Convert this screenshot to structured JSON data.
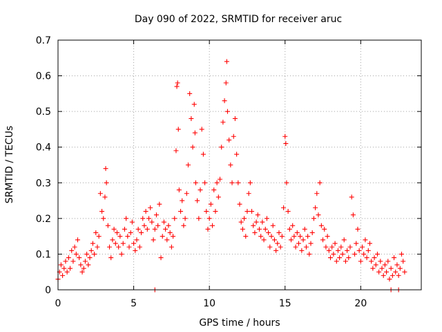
{
  "chart_data": {
    "type": "scatter",
    "title": "Day 090 of 2022, SRMTID for receiver aruc",
    "xlabel": "GPS time / hours",
    "ylabel": "SRMTID / TECUs",
    "xlim": [
      0,
      24
    ],
    "ylim": [
      0,
      0.7
    ],
    "x_ticks": [
      0,
      5,
      10,
      15,
      20
    ],
    "x_tick_labels": [
      "0",
      "5",
      "10",
      "15",
      "20"
    ],
    "y_ticks": [
      0,
      0.1,
      0.2,
      0.3,
      0.4,
      0.5,
      0.6,
      0.7
    ],
    "y_tick_labels": [
      "0",
      "0.1",
      "0.2",
      "0.3",
      "0.4",
      "0.5",
      "0.6",
      "0.7"
    ],
    "grid": true,
    "marker": "+",
    "color": "#ff0000",
    "series": [
      {
        "name": "SRMTID",
        "points": [
          [
            0.0,
            0.03
          ],
          [
            0.1,
            0.05
          ],
          [
            0.2,
            0.07
          ],
          [
            0.3,
            0.04
          ],
          [
            0.4,
            0.06
          ],
          [
            0.5,
            0.08
          ],
          [
            0.6,
            0.05
          ],
          [
            0.7,
            0.09
          ],
          [
            0.8,
            0.06
          ],
          [
            0.9,
            0.11
          ],
          [
            1.0,
            0.08
          ],
          [
            1.1,
            0.12
          ],
          [
            1.2,
            0.1
          ],
          [
            1.3,
            0.14
          ],
          [
            1.4,
            0.09
          ],
          [
            1.5,
            0.07
          ],
          [
            1.6,
            0.05
          ],
          [
            1.7,
            0.06
          ],
          [
            1.8,
            0.08
          ],
          [
            1.9,
            0.1
          ],
          [
            2.0,
            0.07
          ],
          [
            2.1,
            0.09
          ],
          [
            2.2,
            0.11
          ],
          [
            2.3,
            0.13
          ],
          [
            2.4,
            0.1
          ],
          [
            2.5,
            0.16
          ],
          [
            2.6,
            0.12
          ],
          [
            2.7,
            0.15
          ],
          [
            2.8,
            0.27
          ],
          [
            2.9,
            0.22
          ],
          [
            3.0,
            0.2
          ],
          [
            3.1,
            0.26
          ],
          [
            3.15,
            0.34
          ],
          [
            3.2,
            0.3
          ],
          [
            3.3,
            0.18
          ],
          [
            3.4,
            0.12
          ],
          [
            3.5,
            0.09
          ],
          [
            3.6,
            0.14
          ],
          [
            3.7,
            0.17
          ],
          [
            3.8,
            0.13
          ],
          [
            3.9,
            0.16
          ],
          [
            4.0,
            0.12
          ],
          [
            4.1,
            0.15
          ],
          [
            4.2,
            0.1
          ],
          [
            4.3,
            0.13
          ],
          [
            4.4,
            0.17
          ],
          [
            4.5,
            0.2
          ],
          [
            4.6,
            0.15
          ],
          [
            4.7,
            0.12
          ],
          [
            4.8,
            0.16
          ],
          [
            4.9,
            0.19
          ],
          [
            5.0,
            0.13
          ],
          [
            5.1,
            0.11
          ],
          [
            5.2,
            0.14
          ],
          [
            5.3,
            0.17
          ],
          [
            5.4,
            0.12
          ],
          [
            5.5,
            0.16
          ],
          [
            5.6,
            0.2
          ],
          [
            5.7,
            0.18
          ],
          [
            5.8,
            0.22
          ],
          [
            5.9,
            0.17
          ],
          [
            6.0,
            0.2
          ],
          [
            6.1,
            0.23
          ],
          [
            6.2,
            0.19
          ],
          [
            6.3,
            0.14
          ],
          [
            6.4,
            0.17
          ],
          [
            6.5,
            0.21
          ],
          [
            6.6,
            0.18
          ],
          [
            6.7,
            0.24
          ],
          [
            6.8,
            0.09
          ],
          [
            6.9,
            0.15
          ],
          [
            7.0,
            0.19
          ],
          [
            7.1,
            0.17
          ],
          [
            7.2,
            0.14
          ],
          [
            7.3,
            0.18
          ],
          [
            7.4,
            0.16
          ],
          [
            7.5,
            0.12
          ],
          [
            7.6,
            0.15
          ],
          [
            7.7,
            0.2
          ],
          [
            7.8,
            0.39
          ],
          [
            7.85,
            0.57
          ],
          [
            7.9,
            0.58
          ],
          [
            7.95,
            0.45
          ],
          [
            8.0,
            0.28
          ],
          [
            8.1,
            0.22
          ],
          [
            8.2,
            0.25
          ],
          [
            8.3,
            0.18
          ],
          [
            8.4,
            0.2
          ],
          [
            8.5,
            0.27
          ],
          [
            8.6,
            0.35
          ],
          [
            8.7,
            0.55
          ],
          [
            8.8,
            0.48
          ],
          [
            8.9,
            0.4
          ],
          [
            9.0,
            0.52
          ],
          [
            9.05,
            0.44
          ],
          [
            9.1,
            0.3
          ],
          [
            9.2,
            0.25
          ],
          [
            9.3,
            0.2
          ],
          [
            9.4,
            0.28
          ],
          [
            9.5,
            0.45
          ],
          [
            9.6,
            0.38
          ],
          [
            9.7,
            0.3
          ],
          [
            9.8,
            0.22
          ],
          [
            9.9,
            0.17
          ],
          [
            10.0,
            0.2
          ],
          [
            10.1,
            0.24
          ],
          [
            10.2,
            0.18
          ],
          [
            10.3,
            0.28
          ],
          [
            10.4,
            0.22
          ],
          [
            10.5,
            0.3
          ],
          [
            10.6,
            0.26
          ],
          [
            10.7,
            0.31
          ],
          [
            10.8,
            0.4
          ],
          [
            10.9,
            0.47
          ],
          [
            11.0,
            0.53
          ],
          [
            11.1,
            0.58
          ],
          [
            11.15,
            0.64
          ],
          [
            11.2,
            0.5
          ],
          [
            11.3,
            0.42
          ],
          [
            11.4,
            0.35
          ],
          [
            11.5,
            0.3
          ],
          [
            11.6,
            0.43
          ],
          [
            11.7,
            0.48
          ],
          [
            11.8,
            0.38
          ],
          [
            11.9,
            0.3
          ],
          [
            12.0,
            0.24
          ],
          [
            12.1,
            0.19
          ],
          [
            12.2,
            0.17
          ],
          [
            12.3,
            0.2
          ],
          [
            12.4,
            0.15
          ],
          [
            12.5,
            0.22
          ],
          [
            12.6,
            0.27
          ],
          [
            12.7,
            0.3
          ],
          [
            12.8,
            0.22
          ],
          [
            12.9,
            0.18
          ],
          [
            13.0,
            0.16
          ],
          [
            13.1,
            0.19
          ],
          [
            13.2,
            0.21
          ],
          [
            13.3,
            0.17
          ],
          [
            13.4,
            0.15
          ],
          [
            13.5,
            0.19
          ],
          [
            13.6,
            0.14
          ],
          [
            13.7,
            0.17
          ],
          [
            13.8,
            0.2
          ],
          [
            13.9,
            0.16
          ],
          [
            14.0,
            0.12
          ],
          [
            14.1,
            0.15
          ],
          [
            14.2,
            0.18
          ],
          [
            14.3,
            0.14
          ],
          [
            14.4,
            0.11
          ],
          [
            14.5,
            0.13
          ],
          [
            14.6,
            0.16
          ],
          [
            14.7,
            0.12
          ],
          [
            14.8,
            0.15
          ],
          [
            14.9,
            0.23
          ],
          [
            15.0,
            0.43
          ],
          [
            15.05,
            0.41
          ],
          [
            15.1,
            0.3
          ],
          [
            15.2,
            0.22
          ],
          [
            15.3,
            0.17
          ],
          [
            15.4,
            0.14
          ],
          [
            15.5,
            0.18
          ],
          [
            15.6,
            0.15
          ],
          [
            15.7,
            0.12
          ],
          [
            15.8,
            0.16
          ],
          [
            15.9,
            0.13
          ],
          [
            16.0,
            0.15
          ],
          [
            16.1,
            0.11
          ],
          [
            16.2,
            0.14
          ],
          [
            16.3,
            0.17
          ],
          [
            16.4,
            0.12
          ],
          [
            16.5,
            0.15
          ],
          [
            16.6,
            0.1
          ],
          [
            16.7,
            0.13
          ],
          [
            16.8,
            0.16
          ],
          [
            16.9,
            0.2
          ],
          [
            17.0,
            0.23
          ],
          [
            17.1,
            0.27
          ],
          [
            17.2,
            0.21
          ],
          [
            17.3,
            0.3
          ],
          [
            17.4,
            0.18
          ],
          [
            17.5,
            0.14
          ],
          [
            17.6,
            0.17
          ],
          [
            17.7,
            0.12
          ],
          [
            17.8,
            0.15
          ],
          [
            17.9,
            0.11
          ],
          [
            18.0,
            0.09
          ],
          [
            18.1,
            0.12
          ],
          [
            18.2,
            0.1
          ],
          [
            18.3,
            0.13
          ],
          [
            18.4,
            0.08
          ],
          [
            18.5,
            0.11
          ],
          [
            18.6,
            0.09
          ],
          [
            18.7,
            0.12
          ],
          [
            18.8,
            0.1
          ],
          [
            18.9,
            0.14
          ],
          [
            19.0,
            0.08
          ],
          [
            19.1,
            0.11
          ],
          [
            19.2,
            0.09
          ],
          [
            19.3,
            0.12
          ],
          [
            19.4,
            0.26
          ],
          [
            19.5,
            0.21
          ],
          [
            19.6,
            0.1
          ],
          [
            19.7,
            0.13
          ],
          [
            19.8,
            0.17
          ],
          [
            19.9,
            0.11
          ],
          [
            20.0,
            0.08
          ],
          [
            20.1,
            0.12
          ],
          [
            20.2,
            0.1
          ],
          [
            20.3,
            0.14
          ],
          [
            20.4,
            0.09
          ],
          [
            20.5,
            0.11
          ],
          [
            20.6,
            0.13
          ],
          [
            20.7,
            0.08
          ],
          [
            20.8,
            0.06
          ],
          [
            20.9,
            0.09
          ],
          [
            21.0,
            0.07
          ],
          [
            21.1,
            0.1
          ],
          [
            21.2,
            0.05
          ],
          [
            21.3,
            0.08
          ],
          [
            21.4,
            0.06
          ],
          [
            21.5,
            0.04
          ],
          [
            21.6,
            0.07
          ],
          [
            21.7,
            0.05
          ],
          [
            21.8,
            0.08
          ],
          [
            21.9,
            0.03
          ],
          [
            22.0,
            0.06
          ],
          [
            22.1,
            0.04
          ],
          [
            22.2,
            0.09
          ],
          [
            22.3,
            0.05
          ],
          [
            22.4,
            0.07
          ],
          [
            22.5,
            0.04
          ],
          [
            22.6,
            0.06
          ],
          [
            22.7,
            0.1
          ],
          [
            22.8,
            0.08
          ],
          [
            22.9,
            0.05
          ]
        ]
      }
    ],
    "zero_markers_x": [
      6.4,
      22.0,
      22.5
    ]
  }
}
